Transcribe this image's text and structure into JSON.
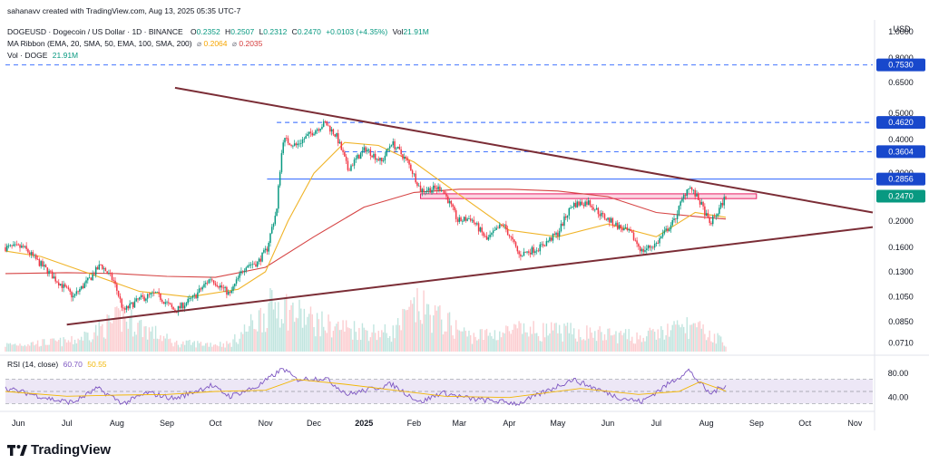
{
  "watermark": "sahanavv created with TradingView.com, Aug 13, 2025 05:35 UTC-7",
  "legend": {
    "symbol": "DOGEUSD · Dogecoin / US Dollar · 1D · BINANCE",
    "o_label": "O",
    "o": "0.2352",
    "h_label": "H",
    "h": "0.2507",
    "l_label": "L",
    "l": "0.2312",
    "c_label": "C",
    "c": "0.2470",
    "change": "+0.0103 (+4.35%)",
    "vol_label": "Vol",
    "vol": "21.91M",
    "ma_label": "MA Ribbon (EMA, 20, SMA, 50, EMA, 100, SMA, 200)",
    "ma_sym": "⌀",
    "ma_val1": "0.2064",
    "ma_val2": "0.2035",
    "vol2_label": "Vol · DOGE",
    "vol2": "21.91M",
    "rsi_label": "RSI (14, close)",
    "rsi_val1": "60.70",
    "rsi_val2": "50.55"
  },
  "currency": "USD",
  "brand": "TradingView",
  "colors": {
    "up": "#089981",
    "down": "#f23645",
    "trendline": "#7b2d36",
    "ma_slow": "#d64545",
    "ma_fast": "#f0b429",
    "level": "#2962ff",
    "zone": "#e91e63",
    "rsi": "#7e57c2",
    "rsi_ma": "#f2b705",
    "rsi_band": "#ede7f6",
    "price_tag": "#089981",
    "level_tag": "#1848cc"
  },
  "chart_data": {
    "type": "candlestick",
    "symbol": "DOGEUSD",
    "scale": "log",
    "ylim": [
      0.066,
      1.07
    ],
    "y_ticks": [
      "0.0710",
      "0.0850",
      "0.1050",
      "0.1300",
      "0.1600",
      "0.2000",
      "0.3000",
      "0.4000",
      "0.5000",
      "0.6500",
      "0.8000",
      "1.0000"
    ],
    "y_tick_values": [
      0.071,
      0.085,
      0.105,
      0.13,
      0.16,
      0.2,
      0.3,
      0.4,
      0.5,
      0.65,
      0.8,
      1.0
    ],
    "x_range": [
      "2024-05-24",
      "2025-11-12"
    ],
    "x_ticks": [
      {
        "label": "Jun",
        "date": "2024-06-01"
      },
      {
        "label": "Jul",
        "date": "2024-07-01"
      },
      {
        "label": "Aug",
        "date": "2024-08-01"
      },
      {
        "label": "Sep",
        "date": "2024-09-01"
      },
      {
        "label": "Oct",
        "date": "2024-10-01"
      },
      {
        "label": "Nov",
        "date": "2024-11-01"
      },
      {
        "label": "Dec",
        "date": "2024-12-01"
      },
      {
        "label": "2025",
        "date": "2025-01-01"
      },
      {
        "label": "Feb",
        "date": "2025-02-01"
      },
      {
        "label": "Mar",
        "date": "2025-03-01"
      },
      {
        "label": "Apr",
        "date": "2025-04-01"
      },
      {
        "label": "May",
        "date": "2025-05-01"
      },
      {
        "label": "Jun",
        "date": "2025-06-01"
      },
      {
        "label": "Jul",
        "date": "2025-07-01"
      },
      {
        "label": "Aug",
        "date": "2025-08-01"
      },
      {
        "label": "Sep",
        "date": "2025-09-01"
      },
      {
        "label": "Oct",
        "date": "2025-10-01"
      },
      {
        "label": "Nov",
        "date": "2025-11-01"
      }
    ],
    "price_path": [
      [
        "2024-05-24",
        0.16
      ],
      [
        "2024-06-04",
        0.16
      ],
      [
        "2024-06-14",
        0.14
      ],
      [
        "2024-06-24",
        0.122
      ],
      [
        "2024-07-05",
        0.105
      ],
      [
        "2024-07-15",
        0.122
      ],
      [
        "2024-07-22",
        0.138
      ],
      [
        "2024-07-30",
        0.12
      ],
      [
        "2024-08-05",
        0.093
      ],
      [
        "2024-08-15",
        0.103
      ],
      [
        "2024-08-25",
        0.108
      ],
      [
        "2024-09-06",
        0.093
      ],
      [
        "2024-09-18",
        0.105
      ],
      [
        "2024-09-28",
        0.123
      ],
      [
        "2024-10-10",
        0.107
      ],
      [
        "2024-10-20",
        0.138
      ],
      [
        "2024-10-27",
        0.14
      ],
      [
        "2024-11-02",
        0.158
      ],
      [
        "2024-11-08",
        0.22
      ],
      [
        "2024-11-12",
        0.4
      ],
      [
        "2024-11-20",
        0.38
      ],
      [
        "2024-12-01",
        0.43
      ],
      [
        "2024-12-08",
        0.46
      ],
      [
        "2024-12-15",
        0.41
      ],
      [
        "2024-12-22",
        0.31
      ],
      [
        "2025-01-02",
        0.37
      ],
      [
        "2025-01-12",
        0.33
      ],
      [
        "2025-01-18",
        0.39
      ],
      [
        "2025-01-28",
        0.33
      ],
      [
        "2025-02-05",
        0.26
      ],
      [
        "2025-02-18",
        0.265
      ],
      [
        "2025-02-28",
        0.2
      ],
      [
        "2025-03-08",
        0.205
      ],
      [
        "2025-03-18",
        0.17
      ],
      [
        "2025-03-28",
        0.195
      ],
      [
        "2025-04-07",
        0.15
      ],
      [
        "2025-04-20",
        0.16
      ],
      [
        "2025-05-01",
        0.18
      ],
      [
        "2025-05-10",
        0.23
      ],
      [
        "2025-05-20",
        0.235
      ],
      [
        "2025-05-28",
        0.21
      ],
      [
        "2025-06-08",
        0.19
      ],
      [
        "2025-06-15",
        0.18
      ],
      [
        "2025-06-22",
        0.155
      ],
      [
        "2025-07-01",
        0.165
      ],
      [
        "2025-07-12",
        0.2
      ],
      [
        "2025-07-21",
        0.27
      ],
      [
        "2025-07-28",
        0.235
      ],
      [
        "2025-08-03",
        0.195
      ],
      [
        "2025-08-08",
        0.215
      ],
      [
        "2025-08-13",
        0.247
      ]
    ],
    "volume_path": [
      [
        "2024-05-24",
        0.9
      ],
      [
        "2024-07-05",
        1.4
      ],
      [
        "2024-08-05",
        4.5
      ],
      [
        "2024-09-06",
        1.1
      ],
      [
        "2024-10-10",
        1.0
      ],
      [
        "2024-11-08",
        6.5
      ],
      [
        "2024-11-20",
        5.0
      ],
      [
        "2024-12-08",
        3.5
      ],
      [
        "2025-01-18",
        2.4
      ],
      [
        "2025-02-03",
        6.0
      ],
      [
        "2025-03-08",
        2.0
      ],
      [
        "2025-04-07",
        2.8
      ],
      [
        "2025-05-10",
        2.6
      ],
      [
        "2025-06-22",
        1.9
      ],
      [
        "2025-07-21",
        3.4
      ],
      [
        "2025-08-13",
        1.3
      ]
    ],
    "ma_slow_path": [
      [
        "2024-05-24",
        0.128
      ],
      [
        "2024-07-01",
        0.129
      ],
      [
        "2024-08-01",
        0.128
      ],
      [
        "2024-09-01",
        0.125
      ],
      [
        "2024-10-01",
        0.124
      ],
      [
        "2024-11-01",
        0.135
      ],
      [
        "2024-12-01",
        0.175
      ],
      [
        "2025-01-01",
        0.225
      ],
      [
        "2025-02-01",
        0.255
      ],
      [
        "2025-03-01",
        0.262
      ],
      [
        "2025-04-01",
        0.262
      ],
      [
        "2025-05-01",
        0.258
      ],
      [
        "2025-06-01",
        0.246
      ],
      [
        "2025-07-01",
        0.215
      ],
      [
        "2025-08-01",
        0.206
      ],
      [
        "2025-08-13",
        0.2035
      ]
    ],
    "ma_fast_path": [
      [
        "2024-05-24",
        0.155
      ],
      [
        "2024-06-15",
        0.148
      ],
      [
        "2024-07-15",
        0.128
      ],
      [
        "2024-08-15",
        0.11
      ],
      [
        "2024-09-15",
        0.105
      ],
      [
        "2024-10-15",
        0.112
      ],
      [
        "2024-11-01",
        0.13
      ],
      [
        "2024-11-15",
        0.2
      ],
      [
        "2024-12-01",
        0.3
      ],
      [
        "2024-12-20",
        0.39
      ],
      [
        "2025-01-10",
        0.38
      ],
      [
        "2025-02-01",
        0.33
      ],
      [
        "2025-03-01",
        0.25
      ],
      [
        "2025-04-01",
        0.185
      ],
      [
        "2025-05-01",
        0.175
      ],
      [
        "2025-06-01",
        0.195
      ],
      [
        "2025-07-01",
        0.175
      ],
      [
        "2025-07-25",
        0.215
      ],
      [
        "2025-08-13",
        0.2064
      ]
    ],
    "rsi_path": [
      [
        "2024-05-24",
        55
      ],
      [
        "2024-06-10",
        45
      ],
      [
        "2024-06-25",
        35
      ],
      [
        "2024-07-05",
        32
      ],
      [
        "2024-07-20",
        55
      ],
      [
        "2024-08-05",
        30
      ],
      [
        "2024-08-20",
        48
      ],
      [
        "2024-09-06",
        38
      ],
      [
        "2024-09-28",
        60
      ],
      [
        "2024-10-10",
        42
      ],
      [
        "2024-10-27",
        58
      ],
      [
        "2024-11-12",
        88
      ],
      [
        "2024-11-20",
        70
      ],
      [
        "2024-12-08",
        72
      ],
      [
        "2024-12-22",
        45
      ],
      [
        "2025-01-18",
        62
      ],
      [
        "2025-02-05",
        32
      ],
      [
        "2025-02-18",
        48
      ],
      [
        "2025-03-08",
        38
      ],
      [
        "2025-04-07",
        30
      ],
      [
        "2025-05-10",
        70
      ],
      [
        "2025-06-08",
        40
      ],
      [
        "2025-06-22",
        33
      ],
      [
        "2025-07-21",
        85
      ],
      [
        "2025-08-03",
        46
      ],
      [
        "2025-08-13",
        60.7
      ]
    ],
    "rsi_ma_path": [
      [
        "2024-05-24",
        50
      ],
      [
        "2024-07-01",
        42
      ],
      [
        "2024-08-01",
        44
      ],
      [
        "2024-09-01",
        45
      ],
      [
        "2024-10-01",
        50
      ],
      [
        "2024-11-01",
        52
      ],
      [
        "2024-11-20",
        70
      ],
      [
        "2024-12-20",
        62
      ],
      [
        "2025-01-20",
        52
      ],
      [
        "2025-02-20",
        42
      ],
      [
        "2025-04-01",
        40
      ],
      [
        "2025-05-15",
        55
      ],
      [
        "2025-06-20",
        45
      ],
      [
        "2025-07-15",
        50
      ],
      [
        "2025-07-28",
        66
      ],
      [
        "2025-08-13",
        50.55
      ]
    ],
    "rsi_ylim": [
      20,
      95
    ],
    "rsi_band": [
      30,
      70
    ],
    "rsi_ticks": [
      "80.00",
      "40.00"
    ],
    "rsi_tick_values": [
      80,
      40
    ],
    "trendlines": [
      {
        "name": "upper",
        "from": [
          "2024-09-06",
          0.62
        ],
        "to": [
          "2025-11-12",
          0.215
        ]
      },
      {
        "name": "lower",
        "from": [
          "2024-07-01",
          0.083
        ],
        "to": [
          "2025-11-12",
          0.19
        ]
      }
    ],
    "horizontal_levels": [
      {
        "value": 0.753,
        "label": "0.7530",
        "style": "dashed"
      },
      {
        "value": 0.462,
        "label": "0.4620",
        "style": "dashed",
        "from": "2024-11-08"
      },
      {
        "value": 0.3604,
        "label": "0.3604",
        "style": "dashed",
        "from": "2024-12-20"
      },
      {
        "value": 0.2856,
        "label": "0.2856",
        "style": "solid",
        "from": "2024-11-02"
      }
    ],
    "zone": {
      "from": "2025-02-05",
      "to": "2025-09-01",
      "low": 0.242,
      "high": 0.252
    },
    "last_price": {
      "value": 0.247,
      "label": "0.2470"
    }
  }
}
